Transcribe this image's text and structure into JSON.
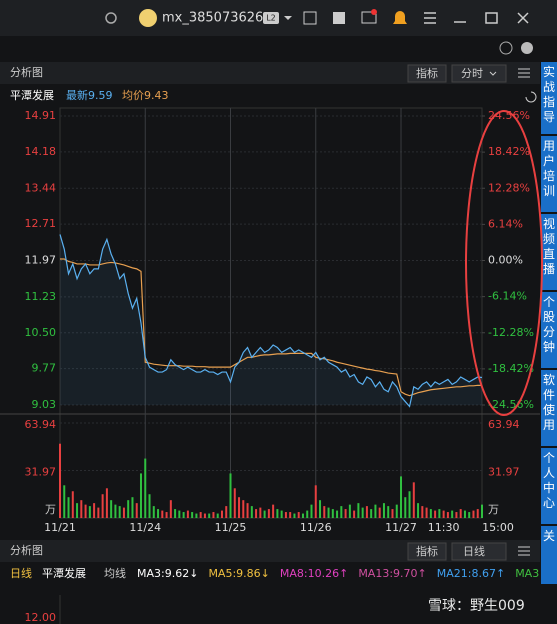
{
  "titlebar": {
    "user": "mx_385073626",
    "badge": "L2"
  },
  "panel": {
    "title": "分析图",
    "buttons": [
      "指标",
      "分时"
    ],
    "stock": "平潭发展",
    "latest": "最新9.59",
    "avg": "均价9.43"
  },
  "chart_data": {
    "type": "line",
    "x_labels": [
      "11/21",
      "11/24",
      "11/25",
      "11/26",
      "11/27",
      "11:30",
      "15:00"
    ],
    "ylim": [
      9.03,
      14.91
    ],
    "yticks": [
      14.91,
      14.18,
      13.44,
      12.71,
      11.97,
      11.23,
      {
        "value": 10.5,
        "label": "10.50"
      },
      9.77,
      9.03
    ],
    "y2lim": [
      -24.56,
      24.56
    ],
    "y2ticks": [
      {
        "value": 24.56,
        "label": "24.56%"
      },
      {
        "value": 18.42,
        "label": "18.42%"
      },
      {
        "value": 12.28,
        "label": "12.28%"
      },
      {
        "value": 6.14,
        "label": "6.14%"
      },
      {
        "value": 0,
        "label": "0.00%"
      },
      {
        "value": -6.14,
        "label": "-6.14%"
      },
      {
        "value": -12.28,
        "label": "-12.28%"
      },
      {
        "value": -18.42,
        "label": "-18.42%"
      },
      {
        "value": -24.56,
        "label": "-24.56%"
      }
    ],
    "series": [
      {
        "name": "最新",
        "color": "#5ab0f0",
        "values": [
          12.5,
          12.2,
          11.7,
          11.9,
          11.6,
          11.8,
          11.9,
          11.7,
          11.8,
          11.8,
          12.2,
          12.4,
          12.1,
          11.9,
          11.6,
          11.7,
          11.3,
          11.0,
          11.2,
          10.7,
          10.0,
          9.8,
          9.75,
          9.7,
          9.7,
          9.75,
          9.95,
          9.85,
          9.8,
          9.75,
          9.8,
          9.75,
          9.7,
          9.7,
          9.75,
          9.7,
          9.7,
          9.65,
          9.7,
          9.7,
          9.5,
          9.8,
          9.9,
          10.1,
          10.2,
          10.0,
          10.1,
          10.2,
          10.1,
          10.15,
          10.25,
          10.2,
          10.1,
          10.15,
          10.2,
          10.1,
          10.15,
          10.1,
          10.05,
          10.0,
          10.1,
          9.95,
          10.0,
          9.9,
          9.85,
          9.8,
          9.7,
          9.75,
          9.6,
          9.65,
          9.5,
          9.45,
          9.6,
          9.55,
          9.4,
          9.5,
          9.35,
          9.3,
          9.5,
          9.4,
          9.2,
          9.1,
          9.0,
          9.4,
          9.35,
          9.45,
          9.5,
          9.4,
          9.5,
          9.45,
          9.5,
          9.55,
          9.45,
          9.5,
          9.6,
          9.55,
          9.5,
          9.55,
          9.6,
          9.59
        ]
      },
      {
        "name": "均价",
        "color": "#e8a050",
        "values": [
          12.0,
          12.0,
          11.95,
          11.93,
          11.9,
          11.9,
          11.9,
          11.88,
          11.88,
          11.88,
          11.9,
          11.92,
          11.93,
          11.92,
          11.9,
          11.88,
          11.85,
          11.82,
          11.8,
          11.75,
          9.9,
          9.88,
          9.86,
          9.85,
          9.84,
          9.83,
          9.83,
          9.83,
          9.83,
          9.82,
          9.82,
          9.82,
          9.81,
          9.81,
          9.81,
          9.8,
          9.8,
          9.8,
          9.8,
          9.8,
          9.8,
          9.85,
          9.9,
          9.95,
          10.0,
          10.0,
          10.02,
          10.04,
          10.05,
          10.05,
          10.06,
          10.07,
          10.07,
          10.07,
          10.08,
          10.08,
          10.08,
          10.08,
          10.08,
          10.08,
          10.0,
          9.98,
          9.97,
          9.95,
          9.93,
          9.9,
          9.88,
          9.86,
          9.84,
          9.82,
          9.8,
          9.78,
          9.76,
          9.75,
          9.73,
          9.72,
          9.7,
          9.68,
          9.67,
          9.66,
          9.3,
          9.25,
          9.22,
          9.25,
          9.28,
          9.3,
          9.32,
          9.34,
          9.35,
          9.36,
          9.37,
          9.38,
          9.39,
          9.4,
          9.4,
          9.41,
          9.42,
          9.42,
          9.43,
          9.43
        ]
      }
    ],
    "volume": {
      "ylim": [
        0,
        63.94
      ],
      "yticks": [
        63.94,
        31.97
      ],
      "unit": "万",
      "values": [
        50,
        22,
        14,
        18,
        10,
        12,
        9,
        8,
        10,
        7,
        16,
        20,
        12,
        9,
        8,
        7,
        12,
        14,
        10,
        30,
        40,
        16,
        8,
        6,
        5,
        4,
        12,
        6,
        5,
        4,
        5,
        4,
        3,
        4,
        3,
        3,
        4,
        3,
        5,
        8,
        30,
        20,
        14,
        12,
        10,
        8,
        6,
        7,
        5,
        6,
        9,
        6,
        5,
        4,
        4,
        3,
        4,
        3,
        5,
        9,
        22,
        12,
        8,
        7,
        6,
        5,
        8,
        6,
        9,
        5,
        10,
        7,
        8,
        6,
        9,
        7,
        10,
        8,
        6,
        9,
        28,
        14,
        18,
        24,
        10,
        8,
        7,
        6,
        5,
        6,
        5,
        4,
        5,
        4,
        6,
        5,
        4,
        5,
        6,
        9
      ]
    }
  },
  "lower": {
    "title": "分析图",
    "buttons": [
      "指标",
      "日线"
    ],
    "period": "日线",
    "stock": "平潭发展",
    "ma_label": "均线",
    "ma": [
      {
        "text": "MA3:9.62↓",
        "color": "#ffffff"
      },
      {
        "text": "MA5:9.86↓",
        "color": "#f0c040"
      },
      {
        "text": "MA8:10.26↑",
        "color": "#e040c0"
      },
      {
        "text": "MA13:9.70↑",
        "color": "#d050a0"
      },
      {
        "text": "MA21:8.67↑",
        "color": "#40a0f0"
      },
      {
        "text": "MA3",
        "color": "#40c040"
      }
    ],
    "tick": "12.00"
  },
  "sidebar": [
    "实战指导",
    "用户培训",
    "视频直播",
    "个股分钟",
    "软件使用",
    "个人中心",
    "关"
  ],
  "watermark": "雪球：野生009"
}
